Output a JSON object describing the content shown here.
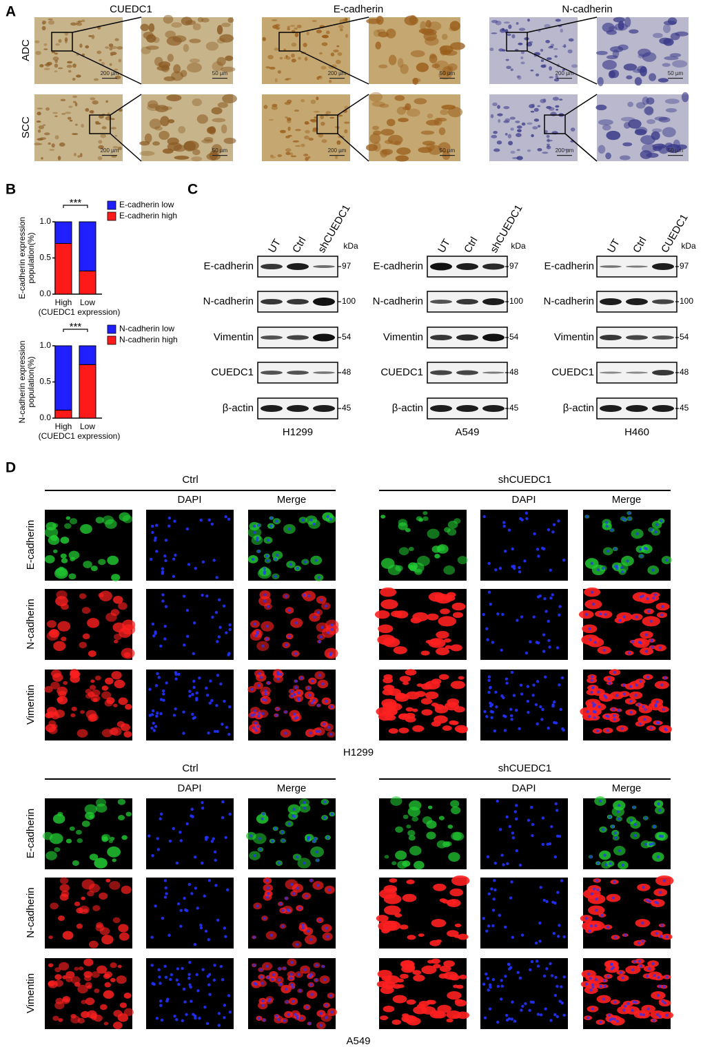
{
  "panel_a": {
    "label": "A",
    "columns": [
      "CUEDC1",
      "E-cadherin",
      "N-cadherin"
    ],
    "rows": [
      "ADC",
      "SCC"
    ],
    "scale_bars": [
      "200 µm",
      "50 µm"
    ]
  },
  "panel_b": {
    "label": "B",
    "charts": [
      {
        "type": "bar",
        "stacked": true,
        "y_label": [
          "E-cadherin expression",
          "population(%)"
        ],
        "categories": [
          "High",
          "Low"
        ],
        "x_label": "(CUEDC1 expression)",
        "significance": "***",
        "series": [
          {
            "name": "E-cadherin low",
            "color": "#1f1fff",
            "values": [
              0.3,
              0.68
            ]
          },
          {
            "name": "E-cadherin high",
            "color": "#ff1a1a",
            "values": [
              0.7,
              0.32
            ]
          }
        ],
        "ylim": [
          0,
          1
        ],
        "yticks": [
          {
            "value": 0,
            "label": "0.0"
          },
          0.5,
          {
            "value": 1,
            "label": "1.0"
          }
        ]
      },
      {
        "type": "bar",
        "stacked": true,
        "y_label": [
          "N-cadherin expression",
          "population(%)"
        ],
        "categories": [
          "High",
          "Low"
        ],
        "x_label": "(CUEDC1 expression)",
        "significance": "***",
        "series": [
          {
            "name": "N-cadherin low",
            "color": "#1f1fff",
            "values": [
              0.89,
              0.26
            ]
          },
          {
            "name": "N-cadherin high",
            "color": "#ff1a1a",
            "values": [
              0.11,
              0.74
            ]
          }
        ],
        "ylim": [
          0,
          1
        ],
        "yticks": [
          {
            "value": 0,
            "label": "0.0"
          },
          0.5,
          {
            "value": 1,
            "label": "1.0"
          }
        ]
      }
    ]
  },
  "panel_c": {
    "label": "C",
    "unit": "kDa",
    "proteins": [
      {
        "name": "E-cadherin",
        "kda": 97
      },
      {
        "name": "N-cadherin",
        "kda": 100
      },
      {
        "name": "Vimentin",
        "kda": 54
      },
      {
        "name": "CUEDC1",
        "kda": 48
      },
      {
        "name": "β-actin",
        "kda": 45
      }
    ],
    "blots": [
      {
        "cell_line": "H1299",
        "lanes": [
          "UT",
          "Ctrl",
          "shCUEDC1"
        ]
      },
      {
        "cell_line": "A549",
        "lanes": [
          "UT",
          "Ctrl",
          "shCUEDC1"
        ]
      },
      {
        "cell_line": "H460",
        "lanes": [
          "UT",
          "Ctrl",
          "CUEDC1"
        ]
      }
    ]
  },
  "panel_d": {
    "label": "D",
    "channels": [
      "DAPI",
      "Merge"
    ],
    "markers": [
      "E-cadherin",
      "N-cadherin",
      "Vimentin"
    ],
    "blocks": [
      {
        "cell_line": "H1299",
        "conditions": [
          "Ctrl",
          "shCUEDC1"
        ]
      },
      {
        "cell_line": "A549",
        "conditions": [
          "Ctrl",
          "shCUEDC1"
        ]
      }
    ]
  }
}
